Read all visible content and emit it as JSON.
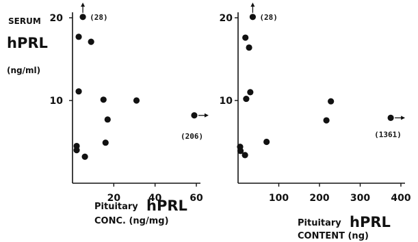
{
  "y_label": {
    "line1": "SERUM",
    "line2": "hPRL",
    "line3": "(ng/ml)"
  },
  "chart_data": [
    {
      "type": "scatter",
      "xlabel_prefix": "Pituitary",
      "xlabel_big": "hPRL",
      "xlabel_line2": "CONC. (ng/mg)",
      "ylabel": "SERUM hPRL (ng/ml)",
      "xlim": [
        0,
        60
      ],
      "ylim": [
        0,
        20
      ],
      "xticks": [
        "20",
        "40",
        "60"
      ],
      "yticks": [
        "10",
        "20"
      ],
      "points": [
        {
          "x": 3,
          "y": 17.7
        },
        {
          "x": 9,
          "y": 17.1
        },
        {
          "x": 3,
          "y": 11.1
        },
        {
          "x": 15,
          "y": 10.1
        },
        {
          "x": 31,
          "y": 10.0
        },
        {
          "x": 17,
          "y": 7.7
        },
        {
          "x": 16,
          "y": 4.9
        },
        {
          "x": 2,
          "y": 4.5
        },
        {
          "x": 2,
          "y": 4.0
        },
        {
          "x": 6,
          "y": 3.2
        }
      ],
      "offscale": [
        {
          "x": 5,
          "y": 20.1,
          "label": "(28)",
          "arrow": "up"
        },
        {
          "x": 59,
          "y": 8.2,
          "label": "(206)",
          "arrow": "right"
        }
      ]
    },
    {
      "type": "scatter",
      "xlabel_prefix": "Pituitary",
      "xlabel_big": "hPRL",
      "xlabel_line2": "CONTENT (ng)",
      "ylabel": "SERUM hPRL (ng/ml)",
      "xlim": [
        0,
        400
      ],
      "ylim": [
        0,
        20
      ],
      "xticks": [
        "100",
        "200",
        "300",
        "400"
      ],
      "yticks": [
        "10",
        "20"
      ],
      "points": [
        {
          "x": 18,
          "y": 17.6
        },
        {
          "x": 27,
          "y": 16.4
        },
        {
          "x": 30,
          "y": 11.0
        },
        {
          "x": 20,
          "y": 10.2
        },
        {
          "x": 228,
          "y": 9.9
        },
        {
          "x": 217,
          "y": 7.6
        },
        {
          "x": 70,
          "y": 5.0
        },
        {
          "x": 5,
          "y": 4.4
        },
        {
          "x": 6,
          "y": 3.9
        },
        {
          "x": 17,
          "y": 3.4
        }
      ],
      "offscale": [
        {
          "x": 36,
          "y": 20.1,
          "label": "(28)",
          "arrow": "up"
        },
        {
          "x": 375,
          "y": 7.9,
          "label": "(1361)",
          "arrow": "right"
        }
      ]
    }
  ]
}
